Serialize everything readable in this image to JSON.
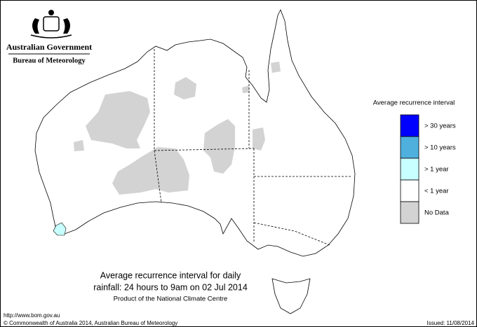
{
  "header": {
    "agency": "Australian Government",
    "bureau": "Bureau of Meteorology"
  },
  "legend": {
    "title": "Average recurrence interval",
    "items": [
      {
        "label": "> 30 years",
        "color": "#0000ff"
      },
      {
        "label": "> 10 years",
        "color": "#4fb0dd"
      },
      {
        "label": "> 1 year",
        "color": "#c8ffff"
      },
      {
        "label": "< 1 year",
        "color": "#ffffff"
      },
      {
        "label": "No Data",
        "color": "#d3d3d3"
      }
    ]
  },
  "caption": {
    "line1": "Average recurrence interval for daily",
    "line2": "rainfall: 24 hours to 9am on 02 Jul 2014",
    "product": "Product of the National Climate Centre"
  },
  "footer": {
    "url": "http://www.bom.gov.au",
    "copyright": "© Commonwealth of Australia 2014, Australian Bureau of Meteorology",
    "issued": "Issued: 11/08/2014"
  }
}
